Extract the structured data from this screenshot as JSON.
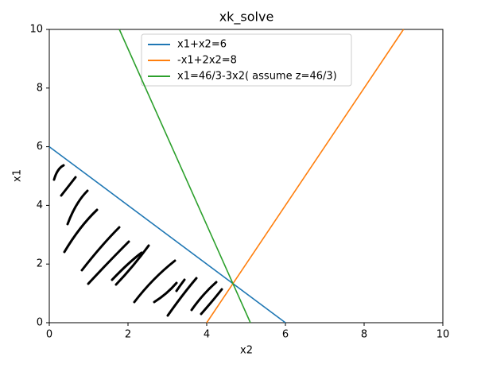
{
  "chart_data": {
    "type": "line",
    "title": "xk_solve",
    "x_label": "x2",
    "y_label": "x1",
    "series": [
      {
        "name": "x1+x2=6",
        "color": "#1f77b4",
        "x": [
          0,
          6
        ],
        "values": [
          6,
          0
        ]
      },
      {
        "name": "-x1+2x2=8",
        "color": "#ff7f0e",
        "x": [
          4,
          9
        ],
        "values": [
          0,
          10
        ]
      },
      {
        "name": "x1=46/3-3x2( assume z=46/3)",
        "color": "#2ca02c",
        "x": [
          1.78,
          5.11
        ],
        "values": [
          10,
          0
        ]
      }
    ],
    "xlim": [
      0,
      10
    ],
    "ylim": [
      0,
      10
    ],
    "xticks": [
      0,
      2,
      4,
      6,
      8,
      10
    ],
    "yticks": [
      0,
      2,
      4,
      6,
      8,
      10
    ],
    "grid": false,
    "legend": "upper center"
  }
}
